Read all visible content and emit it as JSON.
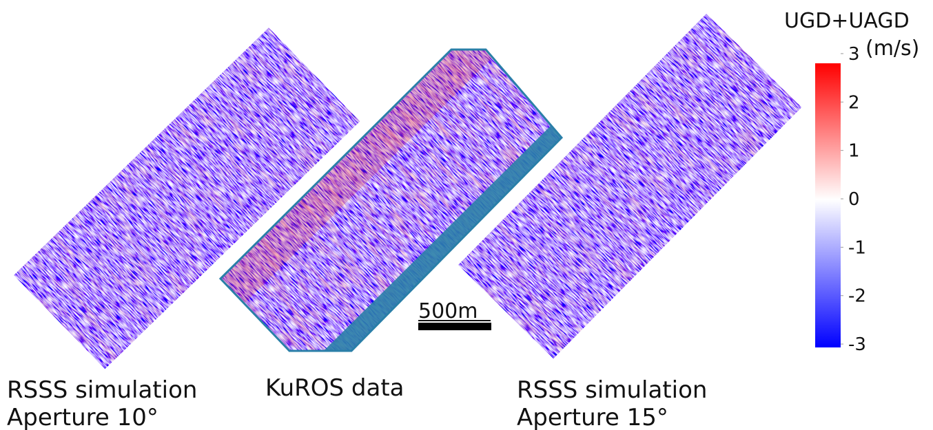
{
  "panels": [
    {
      "label_lines": [
        "RSSS simulation",
        "Aperture 10°"
      ]
    },
    {
      "label_lines": [
        "KuROS data"
      ]
    },
    {
      "label_lines": [
        "RSSS simulation",
        "Aperture 15°"
      ]
    }
  ],
  "scale_bar": {
    "label": "500m"
  },
  "colorbar": {
    "title_lines": [
      "UGD+UAGD",
      "(m/s)"
    ],
    "lim": [
      -3.07,
      2.8
    ],
    "ticks": [
      3,
      2,
      1,
      0,
      -1,
      -2,
      -3
    ]
  }
}
